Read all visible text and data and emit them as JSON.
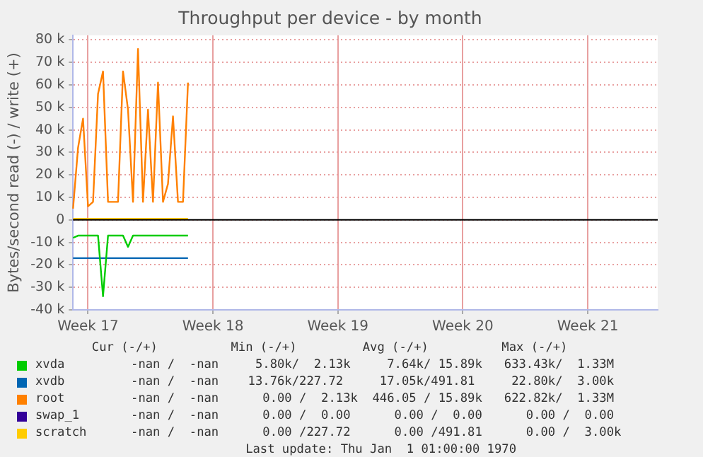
{
  "chart_data": {
    "type": "line",
    "title": "Throughput per device - by month",
    "ylabel": "Bytes/second read (-) / write (+)",
    "categories": [
      null,
      null,
      null,
      "Week 17",
      null,
      null,
      null,
      null,
      null,
      null,
      null,
      null,
      null,
      null,
      null,
      null,
      null,
      null,
      null,
      null,
      null,
      null,
      null,
      null,
      null,
      null,
      null,
      null,
      "Week 18",
      null,
      null,
      null,
      null,
      null,
      null,
      null,
      null,
      null,
      null,
      null,
      null,
      null,
      null,
      null,
      null,
      null,
      null,
      null,
      null,
      null,
      null,
      null,
      null,
      "Week 19",
      null,
      null,
      null,
      null,
      null,
      null,
      null,
      null,
      null,
      null,
      null,
      null,
      null,
      null,
      null,
      null,
      null,
      null,
      null,
      null,
      null,
      null,
      null,
      null,
      "Week 20",
      null,
      null,
      null,
      null,
      null,
      null,
      null,
      null,
      null,
      null,
      null,
      null,
      null,
      null,
      null,
      null,
      null,
      null,
      null,
      null,
      null,
      null,
      null,
      null,
      "Week 21",
      null,
      null,
      null,
      null,
      null,
      null,
      null,
      null,
      null,
      null,
      null,
      null,
      null,
      null
    ],
    "ylim": [
      -40000,
      82000
    ],
    "yticks": [
      {
        "value": -40000,
        "label": "-40 k"
      },
      {
        "value": -30000,
        "label": "-30 k"
      },
      {
        "value": -20000,
        "label": "-20 k"
      },
      {
        "value": -10000,
        "label": "-10 k"
      },
      {
        "value": 0,
        "label": "0"
      },
      {
        "value": 10000,
        "label": "10 k"
      },
      {
        "value": 20000,
        "label": "20 k"
      },
      {
        "value": 30000,
        "label": "30 k"
      },
      {
        "value": 40000,
        "label": "40 k"
      },
      {
        "value": 50000,
        "label": "50 k"
      },
      {
        "value": 60000,
        "label": "60 k"
      },
      {
        "value": 70000,
        "label": "70 k"
      },
      {
        "value": 80000,
        "label": "80 k"
      }
    ],
    "grid": true,
    "legend": "bottom",
    "marker": "none",
    "line_style": "solid",
    "ref_lines": [
      {
        "axis": "y",
        "value": 0,
        "color": "#000000"
      }
    ],
    "series": [
      {
        "name": "xvda",
        "color": "#00cc00",
        "values": [
          -8000,
          -7000,
          -7000,
          -7000,
          -7000,
          -7000,
          -34000,
          -7000,
          -7000,
          -7000,
          -7000,
          -12000,
          -7000,
          -7000,
          -7000,
          -7000,
          -7000,
          -7000,
          -7000,
          -7000,
          -7000,
          -7000,
          -7000,
          -7000,
          null,
          null,
          null,
          null,
          null,
          null,
          null,
          null,
          null,
          null,
          null,
          null,
          null,
          null,
          null,
          null,
          null,
          null,
          null,
          null,
          null,
          null,
          null,
          null,
          null,
          null,
          null,
          null,
          null,
          null,
          null,
          null,
          null,
          null,
          null,
          null,
          null,
          null,
          null,
          null,
          null,
          null,
          null,
          null,
          null,
          null,
          null,
          null,
          null,
          null,
          null,
          null,
          null,
          null,
          null,
          null,
          null,
          null,
          null,
          null,
          null,
          null,
          null,
          null,
          null,
          null,
          null,
          null,
          null,
          null,
          null,
          null,
          null,
          null,
          null,
          null,
          null,
          null,
          null,
          null,
          null,
          null,
          null,
          null,
          null,
          null,
          null,
          null,
          null,
          null,
          null,
          null,
          null,
          null
        ]
      },
      {
        "name": "xvdb",
        "color": "#0066b3",
        "values": [
          -17000,
          -17000,
          -17000,
          -17000,
          -17000,
          -17000,
          -17000,
          -17000,
          -17000,
          -17000,
          -17000,
          -17000,
          -17000,
          -17000,
          -17000,
          -17000,
          -17000,
          -17000,
          -17000,
          -17000,
          -17000,
          -17000,
          -17000,
          -17000,
          null,
          null,
          null,
          null,
          null,
          null,
          null,
          null,
          null,
          null,
          null,
          null,
          null,
          null,
          null,
          null,
          null,
          null,
          null,
          null,
          null,
          null,
          null,
          null,
          null,
          null,
          null,
          null,
          null,
          null,
          null,
          null,
          null,
          null,
          null,
          null,
          null,
          null,
          null,
          null,
          null,
          null,
          null,
          null,
          null,
          null,
          null,
          null,
          null,
          null,
          null,
          null,
          null,
          null,
          null,
          null,
          null,
          null,
          null,
          null,
          null,
          null,
          null,
          null,
          null,
          null,
          null,
          null,
          null,
          null,
          null,
          null,
          null,
          null,
          null,
          null,
          null,
          null,
          null,
          null,
          null,
          null,
          null,
          null,
          null,
          null,
          null,
          null,
          null,
          null,
          null,
          null,
          null,
          null
        ]
      },
      {
        "name": "root",
        "color": "#ff8000",
        "values": [
          5000,
          32000,
          45000,
          6000,
          8000,
          56000,
          66000,
          8000,
          8000,
          8000,
          66000,
          49000,
          8000,
          76000,
          8000,
          49000,
          8000,
          61000,
          8000,
          16000,
          46000,
          8000,
          8000,
          61000,
          null,
          null,
          null,
          null,
          null,
          null,
          null,
          null,
          null,
          null,
          null,
          null,
          null,
          null,
          null,
          null,
          null,
          null,
          null,
          null,
          null,
          null,
          null,
          null,
          null,
          null,
          null,
          null,
          null,
          null,
          null,
          null,
          null,
          null,
          null,
          null,
          null,
          null,
          null,
          null,
          null,
          null,
          null,
          null,
          null,
          null,
          null,
          null,
          null,
          null,
          null,
          null,
          null,
          null,
          null,
          null,
          null,
          null,
          null,
          null,
          null,
          null,
          null,
          null,
          null,
          null,
          null,
          null,
          null,
          null,
          null,
          null,
          null,
          null,
          null,
          null,
          null,
          null,
          null,
          null,
          null,
          null,
          null,
          null,
          null,
          null,
          null,
          null,
          null,
          null,
          null,
          null,
          null,
          null
        ]
      },
      {
        "name": "swap_1",
        "color": "#330099",
        "values": [
          null,
          null,
          null,
          null,
          null,
          null,
          null,
          null,
          null,
          null,
          null,
          null,
          null,
          null,
          null,
          null,
          null,
          null,
          null,
          null,
          null,
          null,
          null,
          null,
          null,
          null,
          null,
          null,
          null,
          null,
          null,
          null,
          null,
          null,
          null,
          null,
          null,
          null,
          null,
          null,
          null,
          null,
          null,
          null,
          null,
          null,
          null,
          null,
          null,
          null,
          null,
          null,
          null,
          null,
          null,
          null,
          null,
          null,
          null,
          null,
          null,
          null,
          null,
          null,
          null,
          null,
          null,
          null,
          null,
          null,
          null,
          null,
          null,
          null,
          null,
          null,
          null,
          null,
          null,
          null,
          null,
          null,
          null,
          null,
          null,
          null,
          null,
          null,
          null,
          null,
          null,
          null,
          null,
          null,
          null,
          null,
          null,
          null,
          null,
          null,
          null,
          null,
          null,
          null,
          null,
          null,
          null,
          null,
          null,
          null,
          null,
          null,
          null,
          null,
          null,
          null,
          null,
          null
        ]
      },
      {
        "name": "scratch",
        "color": "#ffcc00",
        "values": [
          500,
          500,
          500,
          500,
          500,
          500,
          500,
          500,
          500,
          500,
          500,
          500,
          500,
          500,
          500,
          500,
          500,
          500,
          500,
          500,
          500,
          500,
          500,
          500,
          null,
          null,
          null,
          null,
          null,
          null,
          null,
          null,
          null,
          null,
          null,
          null,
          null,
          null,
          null,
          null,
          null,
          null,
          null,
          null,
          null,
          null,
          null,
          null,
          null,
          null,
          null,
          null,
          null,
          null,
          null,
          null,
          null,
          null,
          null,
          null,
          null,
          null,
          null,
          null,
          null,
          null,
          null,
          null,
          null,
          null,
          null,
          null,
          null,
          null,
          null,
          null,
          null,
          null,
          null,
          null,
          null,
          null,
          null,
          null,
          null,
          null,
          null,
          null,
          null,
          null,
          null,
          null,
          null,
          null,
          null,
          null,
          null,
          null,
          null,
          null,
          null,
          null,
          null,
          null,
          null,
          null,
          null,
          null,
          null,
          null,
          null,
          null,
          null,
          null,
          null,
          null,
          null,
          null
        ]
      }
    ],
    "annotations": [
      "           Cur (-/+)          Min (-/+)         Avg (-/+)          Max (-/+)",
      "   -nan /  -nan     5.80k/  2.13k     7.64k/ 15.89k   633.43k/  1.33M",
      "   -nan /  -nan    13.76k/227.72     17.05k/491.81     22.80k/  3.00k",
      "   -nan /  -nan      0.00 /  2.13k  446.05 / 15.89k   622.82k/  1.33M",
      "   -nan /  -nan      0.00 /  0.00      0.00 /  0.00      0.00 /  0.00",
      "   -nan /  -nan      0.00 /227.72      0.00 /491.81      0.00 /  3.00k",
      "                                Last update: Thu Jan  1 01:00:00 1970"
    ]
  }
}
